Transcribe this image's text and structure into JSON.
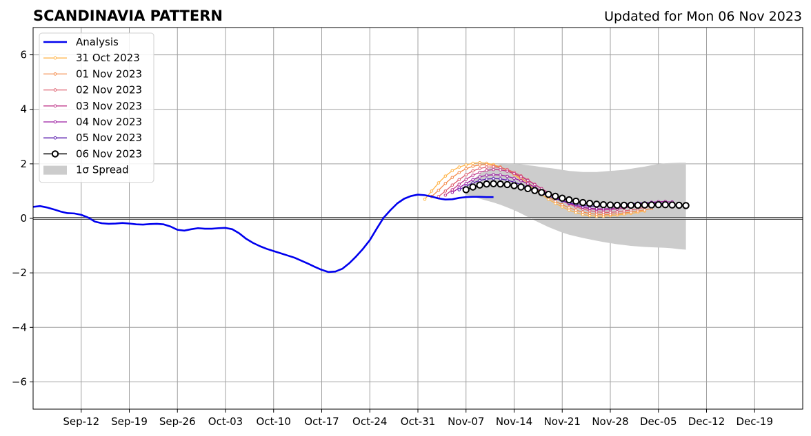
{
  "chart_data": {
    "type": "line",
    "title": "SCANDINAVIA PATTERN",
    "subtitle": "Updated for Mon 06 Nov 2023",
    "xlabel": "",
    "ylabel": "",
    "xlim": [
      "2023-09-05",
      "2023-12-26"
    ],
    "ylim": [
      -7,
      7
    ],
    "grid": true,
    "legend_position": "top-left",
    "x_ticks": [
      "2023-09-12",
      "2023-09-19",
      "2023-09-26",
      "2023-10-03",
      "2023-10-10",
      "2023-10-17",
      "2023-10-24",
      "2023-10-31",
      "2023-11-07",
      "2023-11-14",
      "2023-11-21",
      "2023-11-28",
      "2023-12-05",
      "2023-12-12",
      "2023-12-19"
    ],
    "x_tick_labels": [
      "Sep-12",
      "Sep-19",
      "Sep-26",
      "Oct-03",
      "Oct-10",
      "Oct-17",
      "Oct-24",
      "Oct-31",
      "Nov-07",
      "Nov-14",
      "Nov-21",
      "Nov-28",
      "Dec-05",
      "Dec-12",
      "Dec-19"
    ],
    "y_ticks": [
      -6,
      -4,
      -2,
      0,
      2,
      4,
      6
    ],
    "y_tick_labels": [
      "−6",
      "−4",
      "−2",
      "0",
      "2",
      "4",
      "6"
    ],
    "analysis": {
      "name": "Analysis",
      "color": "#0000ee",
      "start": "2023-09-05",
      "values": [
        0.42,
        0.45,
        0.4,
        0.33,
        0.25,
        0.19,
        0.18,
        0.13,
        0.03,
        -0.12,
        -0.18,
        -0.2,
        -0.19,
        -0.17,
        -0.19,
        -0.22,
        -0.23,
        -0.21,
        -0.2,
        -0.22,
        -0.3,
        -0.42,
        -0.45,
        -0.4,
        -0.36,
        -0.38,
        -0.38,
        -0.36,
        -0.35,
        -0.4,
        -0.55,
        -0.75,
        -0.9,
        -1.02,
        -1.12,
        -1.2,
        -1.28,
        -1.36,
        -1.44,
        -1.55,
        -1.66,
        -1.78,
        -1.89,
        -1.97,
        -1.95,
        -1.85,
        -1.65,
        -1.4,
        -1.12,
        -0.8,
        -0.38,
        0.02,
        0.3,
        0.55,
        0.72,
        0.82,
        0.87,
        0.85,
        0.8,
        0.73,
        0.69,
        0.7,
        0.75,
        0.78,
        0.79,
        0.79,
        0.78,
        0.78
      ]
    },
    "spread": {
      "name": "1σ Spread",
      "color": "#cccccc",
      "start": "2023-11-07",
      "upper": [
        1.2,
        1.4,
        1.62,
        1.8,
        1.92,
        1.98,
        2.0,
        2.0,
        1.98,
        1.95,
        1.92,
        1.88,
        1.85,
        1.82,
        1.78,
        1.74,
        1.72,
        1.7,
        1.7,
        1.7,
        1.72,
        1.74,
        1.76,
        1.78,
        1.82,
        1.86,
        1.9,
        1.95,
        1.99,
        2.02,
        2.03,
        2.04,
        2.04
      ],
      "lower": [
        0.85,
        0.8,
        0.72,
        0.65,
        0.58,
        0.5,
        0.4,
        0.3,
        0.18,
        0.05,
        -0.08,
        -0.2,
        -0.32,
        -0.42,
        -0.52,
        -0.6,
        -0.66,
        -0.72,
        -0.77,
        -0.82,
        -0.87,
        -0.91,
        -0.95,
        -0.98,
        -1.01,
        -1.03,
        -1.05,
        -1.06,
        -1.07,
        -1.08,
        -1.1,
        -1.13,
        -1.15
      ]
    },
    "series": [
      {
        "name": "31 Oct 2023",
        "color": "#ffb347",
        "start": "2023-11-01",
        "values": [
          0.7,
          1.0,
          1.3,
          1.55,
          1.75,
          1.88,
          1.96,
          2.02,
          2.04,
          2.02,
          1.97,
          1.88,
          1.75,
          1.6,
          1.42,
          1.24,
          1.05,
          0.87,
          0.7,
          0.55,
          0.42,
          0.3,
          0.21,
          0.14,
          0.1,
          0.08,
          0.08,
          0.1,
          0.12,
          0.15,
          0.18,
          0.22,
          0.27
        ]
      },
      {
        "name": "01 Nov 2023",
        "color": "#f48a4a",
        "start": "2023-11-02",
        "values": [
          0.8,
          1.03,
          1.28,
          1.5,
          1.68,
          1.82,
          1.91,
          1.96,
          1.97,
          1.94,
          1.88,
          1.78,
          1.64,
          1.48,
          1.31,
          1.13,
          0.95,
          0.78,
          0.63,
          0.5,
          0.39,
          0.3,
          0.23,
          0.18,
          0.15,
          0.14,
          0.15,
          0.17,
          0.2,
          0.23,
          0.27,
          0.31,
          0.36
        ]
      },
      {
        "name": "02 Nov 2023",
        "color": "#de5f6f",
        "start": "2023-11-03",
        "values": [
          0.8,
          1.0,
          1.22,
          1.42,
          1.6,
          1.74,
          1.83,
          1.88,
          1.89,
          1.86,
          1.79,
          1.69,
          1.56,
          1.41,
          1.25,
          1.09,
          0.93,
          0.78,
          0.64,
          0.52,
          0.42,
          0.34,
          0.28,
          0.24,
          0.22,
          0.22,
          0.24,
          0.27,
          0.31,
          0.35,
          0.4,
          0.45,
          0.5
        ]
      },
      {
        "name": "03 Nov 2023",
        "color": "#c03a8b",
        "start": "2023-11-04",
        "values": [
          0.85,
          1.05,
          1.25,
          1.43,
          1.58,
          1.69,
          1.76,
          1.79,
          1.78,
          1.73,
          1.64,
          1.53,
          1.39,
          1.24,
          1.09,
          0.94,
          0.8,
          0.67,
          0.56,
          0.47,
          0.4,
          0.35,
          0.32,
          0.31,
          0.32,
          0.34,
          0.38,
          0.42,
          0.47,
          0.52,
          0.56,
          0.6,
          0.62
        ]
      },
      {
        "name": "04 Nov 2023",
        "color": "#9b1aa0",
        "start": "2023-11-05",
        "values": [
          0.95,
          1.12,
          1.28,
          1.42,
          1.52,
          1.58,
          1.6,
          1.59,
          1.54,
          1.47,
          1.38,
          1.27,
          1.14,
          1.01,
          0.88,
          0.76,
          0.65,
          0.55,
          0.47,
          0.41,
          0.37,
          0.35,
          0.35,
          0.36,
          0.39,
          0.43,
          0.47,
          0.52,
          0.56,
          0.59,
          0.61,
          0.61,
          0.6
        ]
      },
      {
        "name": "05 Nov 2023",
        "color": "#5a1cae",
        "start": "2023-11-06",
        "values": [
          1.05,
          1.18,
          1.3,
          1.39,
          1.44,
          1.46,
          1.45,
          1.4,
          1.33,
          1.24,
          1.14,
          1.03,
          0.92,
          0.82,
          0.72,
          0.64,
          0.57,
          0.51,
          0.47,
          0.45,
          0.44,
          0.45,
          0.47,
          0.49,
          0.52,
          0.54,
          0.56,
          0.57,
          0.57,
          0.56,
          0.54,
          0.52,
          0.5
        ]
      },
      {
        "name": "06 Nov 2023",
        "color": "#000000",
        "start": "2023-11-07",
        "values": [
          1.05,
          1.15,
          1.22,
          1.26,
          1.27,
          1.26,
          1.24,
          1.2,
          1.15,
          1.09,
          1.02,
          0.95,
          0.88,
          0.81,
          0.74,
          0.68,
          0.63,
          0.58,
          0.55,
          0.52,
          0.5,
          0.49,
          0.48,
          0.48,
          0.48,
          0.48,
          0.49,
          0.49,
          0.5,
          0.5,
          0.49,
          0.48,
          0.47
        ]
      }
    ]
  }
}
